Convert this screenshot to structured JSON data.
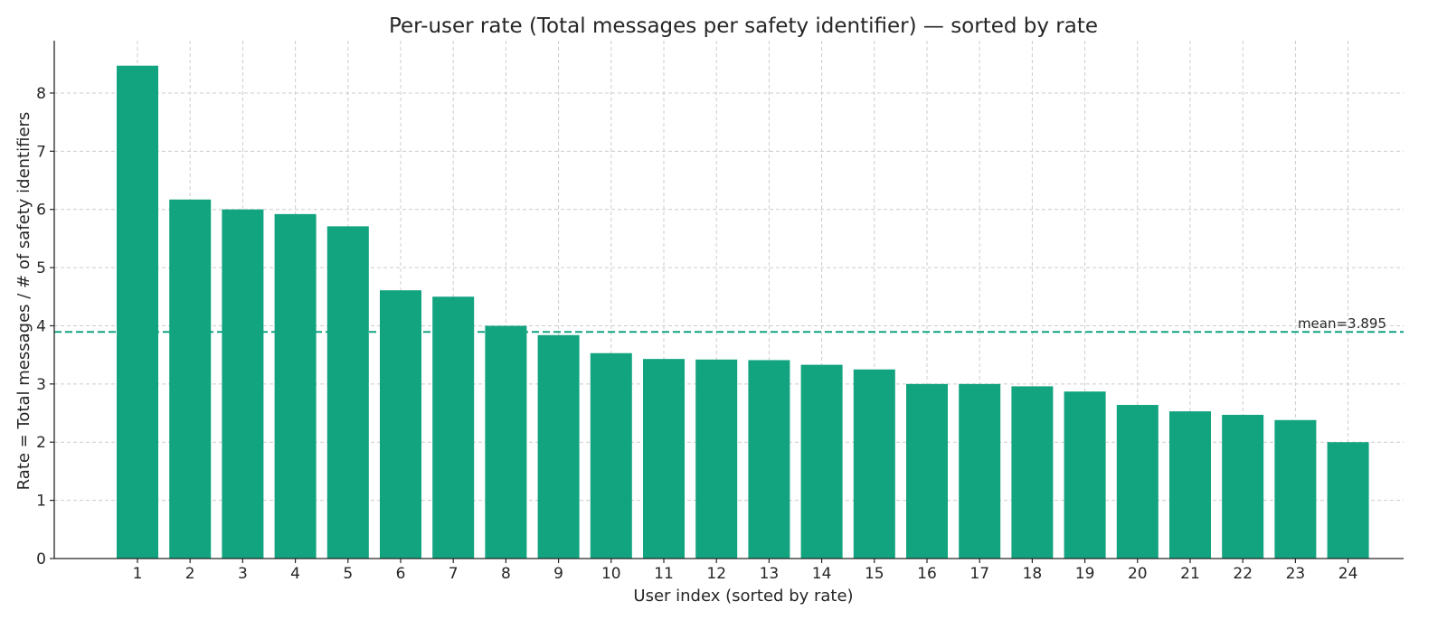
{
  "chart_data": {
    "type": "bar",
    "title": "Per-user rate (Total messages per safety identifier) — sorted by rate",
    "xlabel": "User index (sorted by rate)",
    "ylabel": "Rate = Total messages / # of safety identifiers",
    "categories": [
      "1",
      "2",
      "3",
      "4",
      "5",
      "6",
      "7",
      "8",
      "9",
      "10",
      "11",
      "12",
      "13",
      "14",
      "15",
      "16",
      "17",
      "18",
      "19",
      "20",
      "21",
      "22",
      "23",
      "24"
    ],
    "values": [
      8.47,
      6.17,
      6.0,
      5.92,
      5.71,
      4.61,
      4.5,
      4.0,
      3.84,
      3.53,
      3.43,
      3.42,
      3.41,
      3.33,
      3.25,
      3.0,
      3.0,
      2.96,
      2.87,
      2.64,
      2.53,
      2.47,
      2.38,
      2.0
    ],
    "ylim": [
      0,
      8.9
    ],
    "yticks": [
      0,
      1,
      2,
      3,
      4,
      5,
      6,
      7,
      8
    ],
    "grid": true,
    "bar_color": "#12a37f",
    "mean": {
      "value": 3.895,
      "label": "mean=3.895",
      "color": "#12a37f",
      "style": "dashed"
    }
  }
}
